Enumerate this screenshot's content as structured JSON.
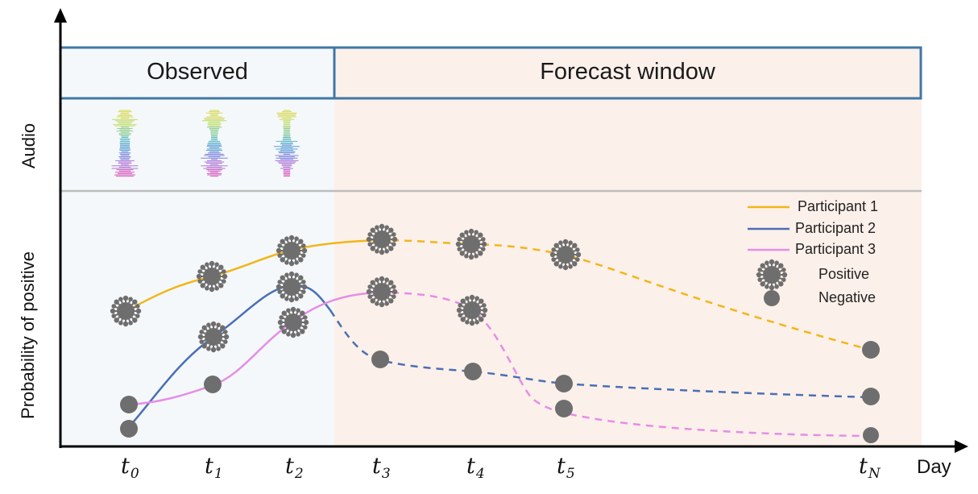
{
  "header": {
    "observed_label": "Observed",
    "forecast_label": "Forecast window"
  },
  "axes": {
    "audio_label": "Audio",
    "prob_label": "Probability of positive",
    "x_label": "Day"
  },
  "ticks": [
    {
      "base": "t",
      "sub": "0"
    },
    {
      "base": "t",
      "sub": "1"
    },
    {
      "base": "t",
      "sub": "2"
    },
    {
      "base": "t",
      "sub": "3"
    },
    {
      "base": "t",
      "sub": "4"
    },
    {
      "base": "t",
      "sub": "5"
    },
    {
      "base": "t",
      "sub": "N"
    }
  ],
  "legend": {
    "p1": "Participant 1",
    "p2": "Participant 2",
    "p3": "Participant 3",
    "positive": "Positive",
    "negative": "Negative"
  },
  "colors": {
    "participant_1": "#f2b619",
    "participant_2": "#4a6fb5",
    "participant_3": "#e48ee6",
    "observed_bg": "#f5f8fb",
    "forecast_bg": "#fcf0ea",
    "box_border": "#3f77a6",
    "marker": "#6e6e6e"
  },
  "participants": [
    {
      "id": "p1",
      "observed": [
        "positive",
        "positive",
        "positive"
      ],
      "forecast": [
        "positive",
        "positive",
        "positive",
        "negative"
      ]
    },
    {
      "id": "p2",
      "observed": [
        "negative",
        "positive",
        "positive"
      ],
      "forecast": [
        "negative",
        "negative",
        "negative",
        "negative"
      ]
    },
    {
      "id": "p3",
      "observed": [
        "negative",
        "negative",
        "positive"
      ],
      "forecast": [
        "positive",
        "positive",
        "negative",
        "negative"
      ]
    }
  ]
}
